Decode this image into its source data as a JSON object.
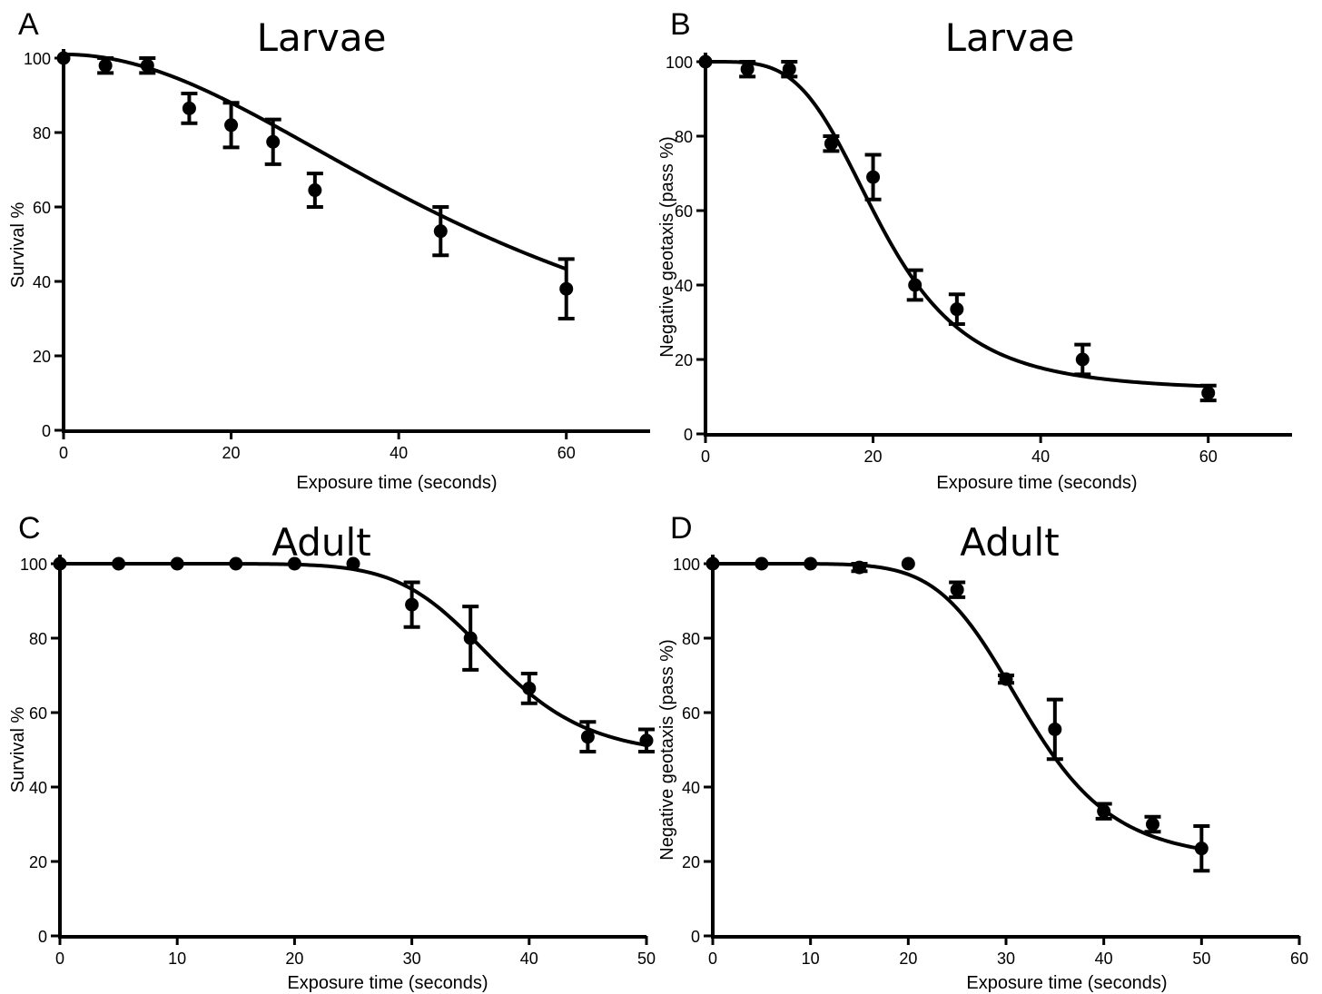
{
  "chart_data": [
    {
      "panel": "A",
      "type": "scatter",
      "title": "Larvae",
      "xlabel": "Exposure time (seconds)",
      "ylabel": "Survival %",
      "xlim": [
        0,
        70
      ],
      "ylim": [
        0,
        100
      ],
      "xticks": [
        0,
        20,
        40,
        60
      ],
      "yticks": [
        0,
        20,
        40,
        60,
        80,
        100
      ],
      "points": [
        {
          "x": 0,
          "y": 100,
          "err": 0
        },
        {
          "x": 5,
          "y": 98,
          "err": 2
        },
        {
          "x": 10,
          "y": 98,
          "err": 2
        },
        {
          "x": 15,
          "y": 86.5,
          "err": 4
        },
        {
          "x": 20,
          "y": 82,
          "err": 6
        },
        {
          "x": 25,
          "y": 77.5,
          "err": 6
        },
        {
          "x": 30,
          "y": 64.5,
          "err": 4.5
        },
        {
          "x": 45,
          "y": 53.5,
          "err": 6.5
        },
        {
          "x": 60,
          "y": 38,
          "err": 8
        }
      ],
      "fit": {
        "top": 101,
        "bottom": 0,
        "x50": 52,
        "hill": 2.0,
        "xmax": 60
      }
    },
    {
      "panel": "B",
      "type": "scatter",
      "title": "Larvae",
      "xlabel": "Exposure time (seconds)",
      "ylabel": "Negative geotaxis (pass %)",
      "xlim": [
        0,
        70
      ],
      "ylim": [
        0,
        100
      ],
      "xticks": [
        0,
        20,
        40,
        60
      ],
      "yticks": [
        0,
        20,
        40,
        60,
        80,
        100
      ],
      "points": [
        {
          "x": 0,
          "y": 100,
          "err": 0
        },
        {
          "x": 5,
          "y": 98,
          "err": 2
        },
        {
          "x": 10,
          "y": 98,
          "err": 2
        },
        {
          "x": 15,
          "y": 78,
          "err": 2
        },
        {
          "x": 20,
          "y": 69,
          "err": 6
        },
        {
          "x": 25,
          "y": 40,
          "err": 4
        },
        {
          "x": 30,
          "y": 33.5,
          "err": 4
        },
        {
          "x": 45,
          "y": 20,
          "err": 4
        },
        {
          "x": 60,
          "y": 11,
          "err": 2
        }
      ],
      "fit": {
        "top": 100,
        "bottom": 11.5,
        "x50": 21,
        "hill": 4.0,
        "xmax": 60
      }
    },
    {
      "panel": "C",
      "type": "scatter",
      "title": "Adult",
      "xlabel": "Exposure time (seconds)",
      "ylabel": "Survival %",
      "xlim": [
        0,
        50
      ],
      "ylim": [
        0,
        100
      ],
      "xticks": [
        0,
        10,
        20,
        30,
        40,
        50
      ],
      "yticks": [
        0,
        20,
        40,
        60,
        80,
        100
      ],
      "points": [
        {
          "x": 0,
          "y": 100,
          "err": 0
        },
        {
          "x": 5,
          "y": 100,
          "err": 0
        },
        {
          "x": 10,
          "y": 100,
          "err": 0
        },
        {
          "x": 15,
          "y": 100,
          "err": 0
        },
        {
          "x": 20,
          "y": 100,
          "err": 0
        },
        {
          "x": 25,
          "y": 100,
          "err": 0
        },
        {
          "x": 30,
          "y": 89,
          "err": 6
        },
        {
          "x": 35,
          "y": 80,
          "err": 8.5
        },
        {
          "x": 40,
          "y": 66.5,
          "err": 4
        },
        {
          "x": 45,
          "y": 53.5,
          "err": 4
        },
        {
          "x": 50,
          "y": 52.5,
          "err": 3
        }
      ],
      "fit": {
        "top": 100,
        "bottom": 48,
        "x50": 37,
        "hill": 9.0,
        "xmax": 50
      }
    },
    {
      "panel": "D",
      "type": "scatter",
      "title": "Adult",
      "xlabel": "Exposure time (seconds)",
      "ylabel": "Negative geotaxis (pass %)",
      "xlim": [
        0,
        60
      ],
      "ylim": [
        0,
        100
      ],
      "xticks": [
        0,
        10,
        20,
        30,
        40,
        50,
        60
      ],
      "yticks": [
        0,
        20,
        40,
        60,
        80,
        100
      ],
      "points": [
        {
          "x": 0,
          "y": 100,
          "err": 0
        },
        {
          "x": 5,
          "y": 100,
          "err": 0
        },
        {
          "x": 10,
          "y": 100,
          "err": 0
        },
        {
          "x": 15,
          "y": 99,
          "err": 1
        },
        {
          "x": 20,
          "y": 100,
          "err": 0
        },
        {
          "x": 25,
          "y": 93,
          "err": 2
        },
        {
          "x": 30,
          "y": 69,
          "err": 1
        },
        {
          "x": 35,
          "y": 55.5,
          "err": 8
        },
        {
          "x": 40,
          "y": 33.5,
          "err": 2
        },
        {
          "x": 45,
          "y": 30,
          "err": 2
        },
        {
          "x": 50,
          "y": 23.5,
          "err": 6
        }
      ],
      "fit": {
        "top": 100,
        "bottom": 20,
        "x50": 32,
        "hill": 7.0,
        "xmax": 50
      }
    }
  ]
}
